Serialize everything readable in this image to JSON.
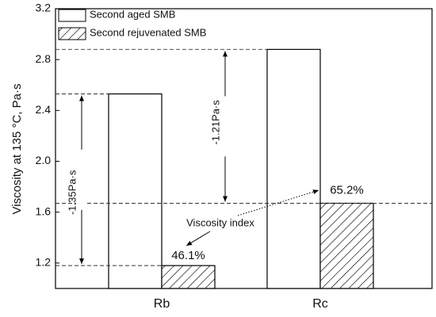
{
  "chart_data": {
    "type": "bar",
    "ylabel": "Viscosity at 135 °C, Pa·s",
    "categories": [
      "Rb",
      "Rc"
    ],
    "series": [
      {
        "name": "Second aged SMB",
        "color": "#ffffff",
        "values": [
          2.53,
          2.88
        ]
      },
      {
        "name": "Second rejuvenated SMB",
        "color": "#ffffff",
        "hatch": true,
        "values": [
          1.18,
          1.67
        ]
      }
    ],
    "ylim": [
      1.0,
      3.2
    ],
    "yticks": [
      1.2,
      1.6,
      {
        "value": 2,
        "label": "2.0"
      },
      2.4,
      2.8,
      3.2
    ],
    "annotations": [
      "-1.35Pa·s",
      "-1.21Pa·s",
      "46.1%",
      "65.2%",
      "Viscosity index"
    ]
  }
}
